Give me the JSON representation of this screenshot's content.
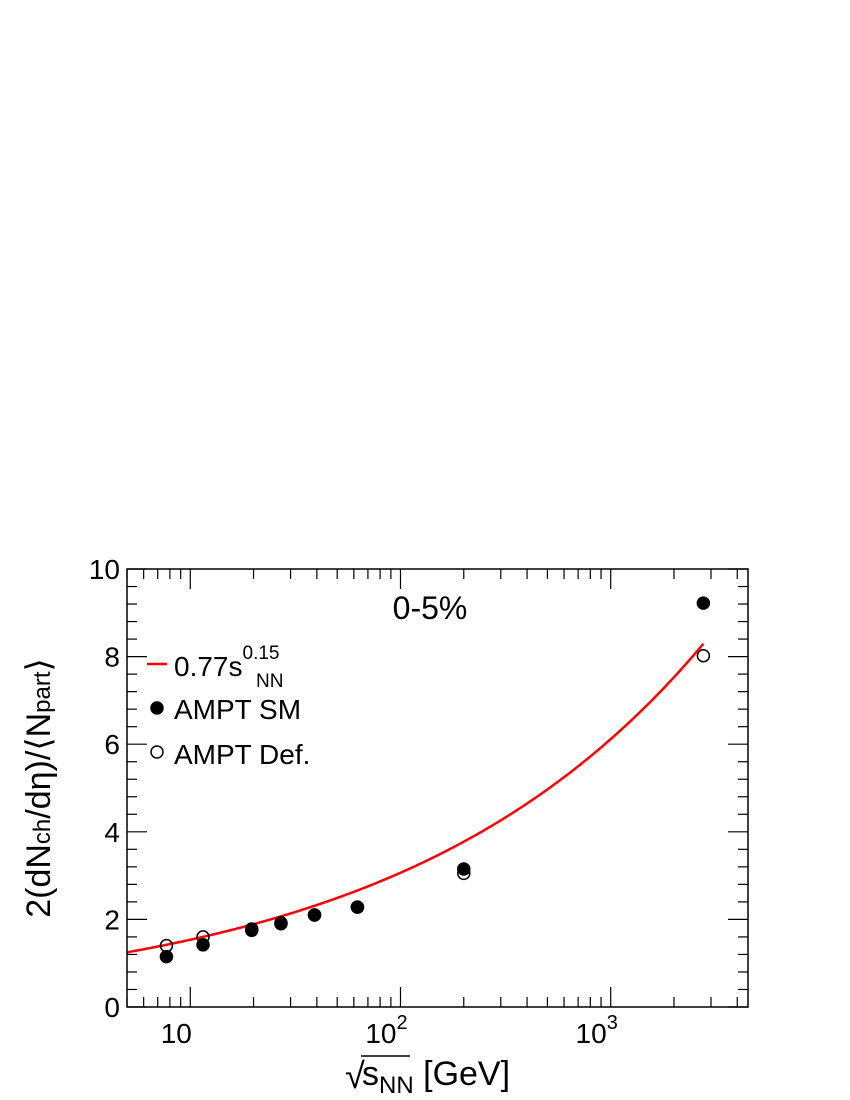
{
  "chart_data": {
    "type": "scatter",
    "title": "0-5%",
    "xlabel": {
      "prefix": "√",
      "main": "s",
      "sub": "NN",
      "suffix": " [GeV]"
    },
    "ylabel": {
      "part1": "2(dN",
      "sub1": "ch",
      "part2": "/dη)/⟨N",
      "sub2": "part",
      "part3": "⟩"
    },
    "x_scale": "log",
    "xlim": [
      5,
      4500
    ],
    "ylim": [
      0,
      10
    ],
    "y_ticks": [
      "0",
      "2",
      "4",
      "6",
      "8",
      "10"
    ],
    "x_ticks": [
      {
        "value": 10,
        "base": "10",
        "exp": ""
      },
      {
        "value": 100,
        "base": "10",
        "exp": "2"
      },
      {
        "value": 1000,
        "base": "10",
        "exp": "3"
      }
    ],
    "fit": {
      "name": "0.77s",
      "name_sub": "NN",
      "name_sup": "0.15",
      "coefficient": 0.77,
      "exponent": 0.15,
      "x_range": [
        5,
        2760
      ],
      "color": "#ff0000"
    },
    "series": [
      {
        "name": "AMPT SM",
        "marker": "filled-circle",
        "x": [
          7.7,
          11.5,
          19.6,
          27,
          39,
          62.4,
          200,
          2760
        ],
        "y": [
          1.15,
          1.42,
          1.75,
          1.9,
          2.1,
          2.28,
          3.15,
          9.22
        ]
      },
      {
        "name": "AMPT Def.",
        "marker": "open-circle",
        "x": [
          7.7,
          11.5,
          19.6,
          27,
          39,
          62.4,
          200,
          2760
        ],
        "y": [
          1.4,
          1.6,
          1.78,
          1.92,
          2.1,
          2.28,
          3.05,
          8.02
        ]
      }
    ]
  }
}
